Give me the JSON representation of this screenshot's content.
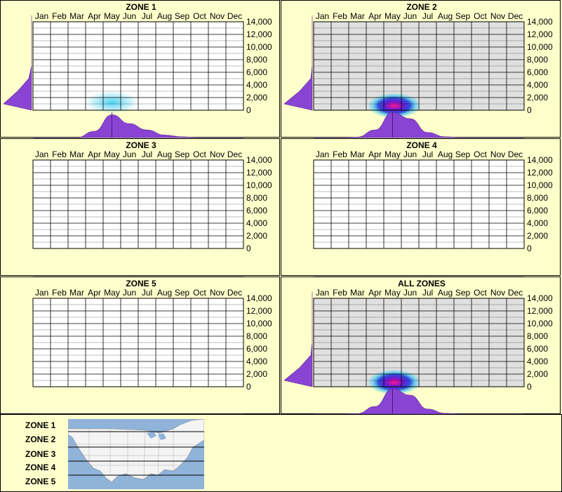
{
  "chart_data": [
    {
      "type": "heatmap",
      "title": "ZONE 1",
      "categories": [
        "Jan",
        "Feb",
        "Mar",
        "Apr",
        "May",
        "Jun",
        "Jul",
        "Aug",
        "Sep",
        "Oct",
        "Nov",
        "Dec"
      ],
      "y_ticks": [
        "14,000",
        "12,000",
        "10,000",
        "8,000",
        "6,000",
        "4,000",
        "2,000",
        "0"
      ],
      "ylim": [
        0,
        14000
      ],
      "grid": true,
      "active_months": [],
      "blob": {
        "center_month": 4.5,
        "center_elev": 1000,
        "intensity": "low"
      },
      "month_marginal": [
        0,
        0,
        0,
        0.25,
        0.9,
        0.55,
        0.3,
        0.1,
        0.03,
        0,
        0,
        0
      ],
      "elev_marginal": [
        1.0,
        0.5,
        0.1,
        0,
        0,
        0,
        0,
        0
      ]
    },
    {
      "type": "heatmap",
      "title": "ZONE 2",
      "categories": [
        "Jan",
        "Feb",
        "Mar",
        "Apr",
        "May",
        "Jun",
        "Jul",
        "Aug",
        "Sep",
        "Oct",
        "Nov",
        "Dec"
      ],
      "y_ticks": [
        "14,000",
        "12,000",
        "10,000",
        "8,000",
        "6,000",
        "4,000",
        "2,000",
        "0"
      ],
      "ylim": [
        0,
        14000
      ],
      "grid": true,
      "active_months": [
        "Jan",
        "Feb",
        "Mar",
        "Apr",
        "May",
        "Jun",
        "Jul",
        "Aug",
        "Sep",
        "Oct",
        "Nov",
        "Dec"
      ],
      "blob": {
        "center_month": 4.6,
        "center_elev": 500,
        "intensity": "high"
      },
      "month_marginal": [
        0,
        0,
        0.02,
        0.3,
        1.0,
        0.75,
        0.2,
        0.03,
        0,
        0,
        0,
        0
      ],
      "elev_marginal": [
        1.0,
        0.45,
        0.05,
        0,
        0,
        0,
        0,
        0
      ]
    },
    {
      "type": "heatmap",
      "title": "ZONE 3",
      "categories": [
        "Jan",
        "Feb",
        "Mar",
        "Apr",
        "May",
        "Jun",
        "Jul",
        "Aug",
        "Sep",
        "Oct",
        "Nov",
        "Dec"
      ],
      "y_ticks": [
        "14,000",
        "12,000",
        "10,000",
        "8,000",
        "6,000",
        "4,000",
        "2,000",
        "0"
      ],
      "ylim": [
        0,
        14000
      ],
      "grid": true,
      "active_months": [],
      "blob": null,
      "month_marginal": null,
      "elev_marginal": null
    },
    {
      "type": "heatmap",
      "title": "ZONE 4",
      "categories": [
        "Jan",
        "Feb",
        "Mar",
        "Apr",
        "May",
        "Jun",
        "Jul",
        "Aug",
        "Sep",
        "Oct",
        "Nov",
        "Dec"
      ],
      "y_ticks": [
        "14,000",
        "12,000",
        "10,000",
        "8,000",
        "6,000",
        "4,000",
        "2,000",
        "0"
      ],
      "ylim": [
        0,
        14000
      ],
      "grid": true,
      "active_months": [],
      "blob": null,
      "month_marginal": null,
      "elev_marginal": null
    },
    {
      "type": "heatmap",
      "title": "ZONE 5",
      "categories": [
        "Jan",
        "Feb",
        "Mar",
        "Apr",
        "May",
        "Jun",
        "Jul",
        "Aug",
        "Sep",
        "Oct",
        "Nov",
        "Dec"
      ],
      "y_ticks": [
        "14,000",
        "12,000",
        "10,000",
        "8,000",
        "6,000",
        "4,000",
        "2,000",
        "0"
      ],
      "ylim": [
        0,
        14000
      ],
      "grid": true,
      "active_months": [],
      "blob": null,
      "month_marginal": null,
      "elev_marginal": null
    },
    {
      "type": "heatmap",
      "title": "ALL ZONES",
      "categories": [
        "Jan",
        "Feb",
        "Mar",
        "Apr",
        "May",
        "Jun",
        "Jul",
        "Aug",
        "Sep",
        "Oct",
        "Nov",
        "Dec"
      ],
      "y_ticks": [
        "14,000",
        "12,000",
        "10,000",
        "8,000",
        "6,000",
        "4,000",
        "2,000",
        "0"
      ],
      "ylim": [
        0,
        14000
      ],
      "grid": true,
      "active_months": [
        "Jan",
        "Feb",
        "Mar",
        "Apr",
        "May",
        "Jun",
        "Jul",
        "Aug",
        "Sep",
        "Oct",
        "Nov",
        "Dec"
      ],
      "blob": {
        "center_month": 4.6,
        "center_elev": 500,
        "intensity": "high"
      },
      "month_marginal": [
        0,
        0,
        0.02,
        0.3,
        1.0,
        0.75,
        0.2,
        0.03,
        0,
        0,
        0,
        0
      ],
      "elev_marginal": [
        1.0,
        0.45,
        0.05,
        0,
        0,
        0,
        0,
        0
      ]
    }
  ],
  "legend": {
    "zones": [
      "ZONE 1",
      "ZONE 2",
      "ZONE 3",
      "ZONE 4",
      "ZONE 5"
    ]
  },
  "colors": {
    "background": "#ffffcc",
    "active_column": "#e0e0e0",
    "marginal_fill": "#8a44d4",
    "heat_low": "#33ccee",
    "heat_high": "#ff1493",
    "water": "#8fb3d9"
  }
}
